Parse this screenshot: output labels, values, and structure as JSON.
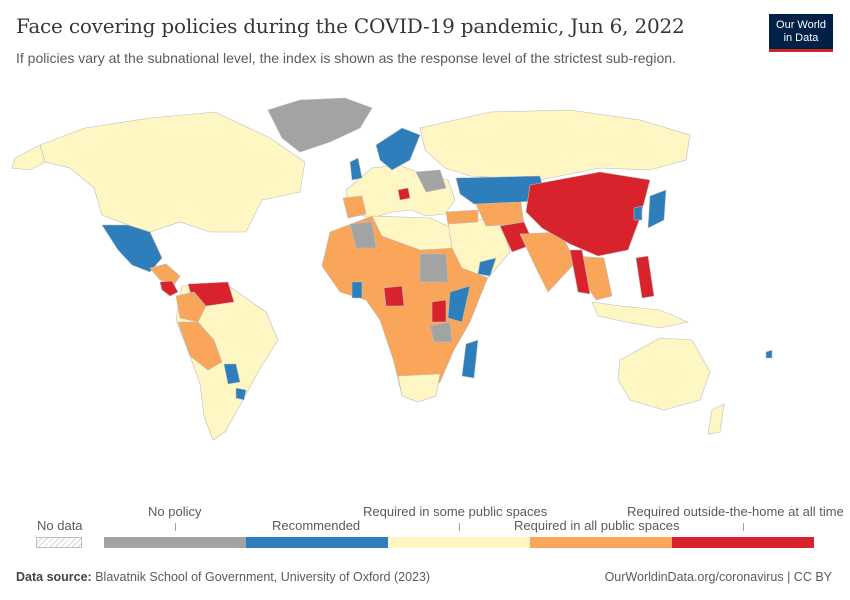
{
  "header": {
    "title": "Face covering policies during the COVID-19 pandemic, Jun 6, 2022",
    "subtitle": "If policies vary at the subnational level, the index is shown as the response level of the strictest sub-region.",
    "logo_line1": "Our World",
    "logo_line2": "in Data"
  },
  "colors": {
    "no_policy": "#a3a3a3",
    "recommended": "#2e7ebc",
    "some_spaces": "#fef7c4",
    "all_spaces": "#f9a65a",
    "at_all_times": "#d8222c",
    "border": "#bdbdbd"
  },
  "legend": {
    "no_data": "No data",
    "categories": [
      "No policy",
      "Recommended",
      "Required in some public spaces",
      "Required in all public spaces",
      "Required outside-the-home at all time"
    ]
  },
  "footer": {
    "source_label": "Data source:",
    "source_text": "Blavatnik School of Government, University of Oxford (2023)",
    "url": "OurWorldinData.org/coronavirus",
    "license": "CC BY"
  }
}
